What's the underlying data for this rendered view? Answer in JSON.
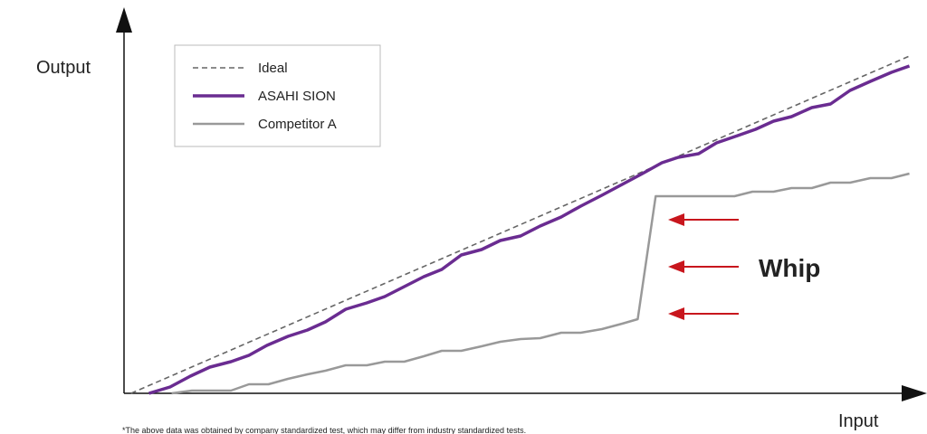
{
  "chart_data": {
    "type": "line",
    "y_label": "Output",
    "x_label": "Input",
    "annotation": "Whip",
    "footnote": "*The above data was obtained by company standardized test, which may differ from industry standardized tests.",
    "xlim": [
      0,
      101
    ],
    "ylim": [
      0,
      100
    ],
    "series": [
      {
        "name": "Ideal",
        "color": "#666666",
        "dashed": true,
        "x": [
          0.9,
          100.6
        ],
        "values": [
          0,
          93.25
        ]
      },
      {
        "name": "ASAHI SION",
        "color": "#6a2c91",
        "x": [
          3.2,
          5.9,
          8.5,
          11.0,
          13.7,
          16.0,
          18.3,
          21.0,
          23.5,
          25.8,
          28.4,
          31.1,
          33.4,
          35.9,
          38.4,
          40.7,
          43.2,
          45.8,
          48.2,
          50.8,
          53.3,
          56.0,
          58.5,
          61.2,
          63.8,
          66.4,
          68.9,
          71.0,
          73.6,
          75.9,
          78.6,
          80.9,
          83.2,
          85.5,
          88.1,
          90.5,
          93.0,
          95.6,
          98.3,
          100.6
        ],
        "values": [
          0,
          1.75,
          4.75,
          7.25,
          8.75,
          10.5,
          13.25,
          15.75,
          17.5,
          19.75,
          23.25,
          25,
          26.75,
          29.5,
          32.25,
          34.25,
          38.25,
          39.75,
          42.25,
          43.5,
          46.25,
          48.75,
          51.75,
          54.75,
          57.75,
          60.75,
          63.75,
          65.25,
          66.25,
          69.25,
          71.25,
          73,
          75.25,
          76.5,
          79,
          80,
          83.75,
          86.25,
          88.75,
          90.5
        ]
      },
      {
        "name": "Competitor A",
        "color": "#999999",
        "x": [
          6.1,
          8.7,
          13.7,
          16.0,
          18.5,
          21.0,
          23.5,
          25.8,
          28.4,
          31.1,
          33.4,
          35.9,
          38.4,
          40.7,
          43.2,
          45.8,
          48.2,
          50.8,
          53.3,
          56.0,
          58.5,
          61.2,
          63.8,
          65.8,
          68.1,
          78.2,
          80.5,
          83.2,
          85.5,
          88.1,
          90.5,
          93.0,
          95.6,
          98.3,
          100.6
        ],
        "values": [
          0,
          0.75,
          0.75,
          2.5,
          2.5,
          4,
          5.25,
          6.25,
          7.75,
          7.75,
          8.75,
          8.75,
          10.25,
          11.75,
          11.75,
          13,
          14.25,
          15,
          15.25,
          16.75,
          16.75,
          17.75,
          19.25,
          20.5,
          54.5,
          54.5,
          55.75,
          55.75,
          56.75,
          56.75,
          58.25,
          58.25,
          59.5,
          59.5,
          60.75
        ]
      }
    ]
  }
}
